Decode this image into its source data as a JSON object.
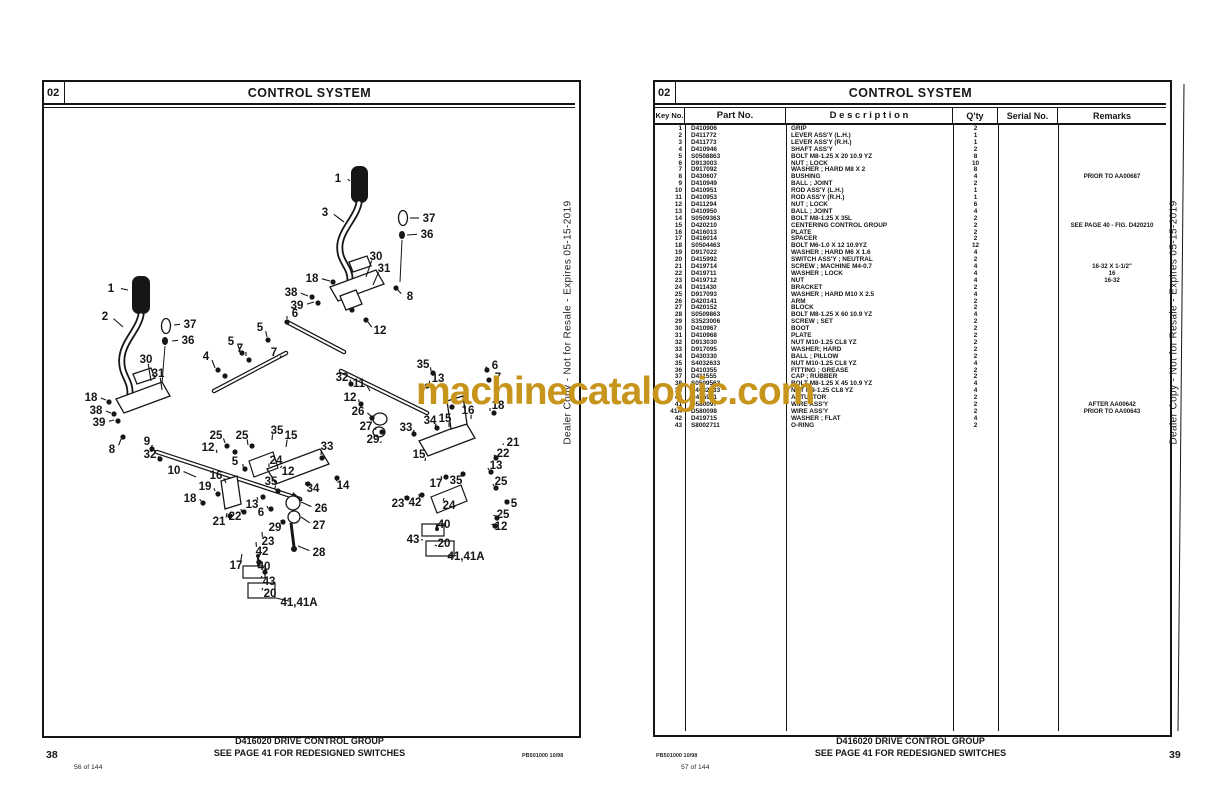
{
  "left_page": {
    "section_no": "02",
    "title": "CONTROL SYSTEM",
    "footer_title1": "D416020 DRIVE CONTROL GROUP",
    "footer_title2": "SEE PAGE 41 FOR REDESIGNED SWITCHES",
    "page_no": "38",
    "sheet_no": "56 of 144",
    "doc_code": "PB501000  10/98",
    "side_text": "Dealer Copy - Not for Resale - Expires 05-15-2019"
  },
  "right_page": {
    "section_no": "02",
    "title": "CONTROL SYSTEM",
    "footer_title1": "D416020 DRIVE CONTROL GROUP",
    "footer_title2": "SEE PAGE 41 FOR REDESIGNED SWITCHES",
    "page_no": "39",
    "sheet_no": "57 of 144",
    "doc_code": "PB501000  10/98",
    "side_text": "Dealer Copy - Not for Resale - Expires 05-15-2019",
    "table": {
      "headers": [
        "Key No.",
        "Part No.",
        "D e s c r i p t i o n",
        "Q'ty",
        "Serial No.",
        "Remarks"
      ],
      "rows": [
        [
          "1",
          "D410906",
          "GRIP",
          "2",
          "",
          ""
        ],
        [
          "2",
          "D411772",
          "LEVER ASS'Y (L.H.)",
          "1",
          "",
          ""
        ],
        [
          "3",
          "D411773",
          "LEVER ASS'Y (R.H.)",
          "1",
          "",
          ""
        ],
        [
          "4",
          "D410946",
          "SHAFT ASS'Y",
          "2",
          "",
          ""
        ],
        [
          "5",
          "S0508863",
          "BOLT M8-1.25 X 20 10.9 YZ",
          "8",
          "",
          ""
        ],
        [
          "6",
          "D913003",
          "NUT ; LOCK",
          "10",
          "",
          ""
        ],
        [
          "7",
          "D917092",
          "WASHER ; HARD M8 X 2",
          "8",
          "",
          ""
        ],
        [
          "8",
          "D430607",
          "BUSHING",
          "4",
          "",
          "PRIOR TO AA00687"
        ],
        [
          "9",
          "D410949",
          "BALL ; JOINT",
          "2",
          "",
          ""
        ],
        [
          "10",
          "D410951",
          "ROD ASS'Y (L.H.)",
          "1",
          "",
          ""
        ],
        [
          "11",
          "D410953",
          "ROD ASS'Y (R.H.)",
          "1",
          "",
          ""
        ],
        [
          "12",
          "D411294",
          "NUT ; LOCK",
          "6",
          "",
          ""
        ],
        [
          "13",
          "D410950",
          "BALL ; JOINT",
          "4",
          "",
          ""
        ],
        [
          "14",
          "S0509363",
          "BOLT M8-1.25 X 35L",
          "2",
          "",
          ""
        ],
        [
          "15",
          "D420210",
          "CENTERING CONTROL GROUP",
          "2",
          "",
          "SEE PAGE 40 - FIG. D420210"
        ],
        [
          "16",
          "D416013",
          "PLATE",
          "2",
          "",
          ""
        ],
        [
          "17",
          "D416014",
          "SPACER",
          "2",
          "",
          ""
        ],
        [
          "18",
          "S0504463",
          "BOLT M6-1.0 X 12 10.9YZ",
          "12",
          "",
          ""
        ],
        [
          "19",
          "D917022",
          "WASHER ; HARD M6 X 1.6",
          "4",
          "",
          ""
        ],
        [
          "20",
          "D415992",
          "SWITCH ASS'Y ; NEUTRAL",
          "2",
          "",
          ""
        ],
        [
          "21",
          "D419714",
          "SCREW ; MACHINE M4-0.7",
          "4",
          "",
          "16-32 X 1-1/2\""
        ],
        [
          "22",
          "D419711",
          "WASHER ; LOCK",
          "4",
          "",
          "16"
        ],
        [
          "23",
          "D419712",
          "NUT",
          "4",
          "",
          "16-32"
        ],
        [
          "24",
          "D411430",
          "BRACKET",
          "2",
          "",
          ""
        ],
        [
          "25",
          "D917093",
          "WASHER ; HARD M10 X 2.5",
          "4",
          "",
          ""
        ],
        [
          "26",
          "D420141",
          "ARM",
          "2",
          "",
          ""
        ],
        [
          "27",
          "D420152",
          "BLOCK",
          "2",
          "",
          ""
        ],
        [
          "28",
          "S0509863",
          "BOLT M8-1.25 X 60 10.9 YZ",
          "4",
          "",
          ""
        ],
        [
          "29",
          "S3523006",
          "SCREW ; SET",
          "2",
          "",
          ""
        ],
        [
          "30",
          "D410967",
          "BOOT",
          "2",
          "",
          ""
        ],
        [
          "31",
          "D410968",
          "PLATE",
          "2",
          "",
          ""
        ],
        [
          "32",
          "D913030",
          "NUT M10-1.25 CL8 YZ",
          "2",
          "",
          ""
        ],
        [
          "33",
          "D917095",
          "WASHER; HARD",
          "2",
          "",
          ""
        ],
        [
          "34",
          "D430330",
          "BALL ; PILLOW",
          "2",
          "",
          ""
        ],
        [
          "35",
          "S4032633",
          "NUT M10-1.25 CL8 YZ",
          "4",
          "",
          ""
        ],
        [
          "36",
          "D410355",
          "FITTING ; GREASE",
          "2",
          "",
          ""
        ],
        [
          "37",
          "D411555",
          "CAP ; RUBBER",
          "2",
          "",
          ""
        ],
        [
          "38",
          "S0509563",
          "BOLT M8-1.25 X 45 10.9 YZ",
          "4",
          "",
          ""
        ],
        [
          "39",
          "S4032533",
          "NUT M8-1.25 CL8 YZ",
          "4",
          "",
          ""
        ],
        [
          "40",
          "D415991",
          "ACTUATOR",
          "2",
          "",
          ""
        ],
        [
          "41",
          "D580097",
          "WIRE ASS'Y",
          "2",
          "",
          "AFTER AA00642"
        ],
        [
          "41A",
          "D580098",
          "WIRE ASS'Y",
          "2",
          "",
          "PRIOR TO AA00643"
        ],
        [
          "42",
          "D419715",
          "WASHER ; FLAT",
          "4",
          "",
          ""
        ],
        [
          "43",
          "S8002711",
          "O-RING",
          "2",
          "",
          ""
        ]
      ]
    }
  },
  "watermark": {
    "text": "machinecatalogic.com",
    "color": "#C8951C"
  },
  "diagram": {
    "figure": "D416020 DRIVE CONTROL GROUP exploded view",
    "callouts": [
      [
        "1",
        338,
        178,
        350,
        181
      ],
      [
        "3",
        325,
        212,
        344,
        222
      ],
      [
        "37",
        429,
        218,
        410,
        218
      ],
      [
        "36",
        427,
        234,
        407,
        235
      ],
      [
        "30",
        376,
        256,
        366,
        277
      ],
      [
        "31",
        384,
        268,
        373,
        285
      ],
      [
        "18",
        312,
        278,
        330,
        281
      ],
      [
        "38",
        291,
        292,
        308,
        296
      ],
      [
        "39",
        297,
        305,
        314,
        302
      ],
      [
        "8",
        410,
        296,
        397,
        289
      ],
      [
        "12",
        380,
        330,
        368,
        322
      ],
      [
        "1",
        111,
        288,
        128,
        290
      ],
      [
        "2",
        105,
        316,
        123,
        327
      ],
      [
        "37",
        190,
        324,
        174,
        325
      ],
      [
        "36",
        188,
        340,
        172,
        341
      ],
      [
        "30",
        146,
        359,
        151,
        381
      ],
      [
        "31",
        158,
        373,
        162,
        390
      ],
      [
        "18",
        91,
        397,
        106,
        400
      ],
      [
        "38",
        96,
        410,
        111,
        413
      ],
      [
        "39",
        99,
        422,
        114,
        420
      ],
      [
        "8",
        112,
        449,
        121,
        439
      ],
      [
        "9",
        147,
        441,
        151,
        447
      ],
      [
        "32",
        150,
        454,
        158,
        458
      ],
      [
        "5",
        231,
        341,
        240,
        351
      ],
      [
        "7",
        240,
        348,
        246,
        356
      ],
      [
        "4",
        206,
        356,
        215,
        368
      ],
      [
        "5",
        260,
        327,
        267,
        337
      ],
      [
        "7",
        274,
        352,
        280,
        358
      ],
      [
        "6",
        295,
        313,
        287,
        319
      ],
      [
        "10",
        174,
        470,
        196,
        477
      ],
      [
        "25",
        216,
        435,
        225,
        443
      ],
      [
        "12",
        208,
        447,
        217,
        453
      ],
      [
        "5",
        235,
        461,
        243,
        467
      ],
      [
        "25",
        242,
        435,
        248,
        445
      ],
      [
        "24",
        276,
        460,
        269,
        467
      ],
      [
        "35",
        277,
        430,
        272,
        440
      ],
      [
        "15",
        291,
        435,
        286,
        447
      ],
      [
        "33",
        327,
        446,
        321,
        455
      ],
      [
        "14",
        343,
        485,
        337,
        478
      ],
      [
        "12",
        288,
        471,
        282,
        466
      ],
      [
        "34",
        313,
        488,
        306,
        482
      ],
      [
        "26",
        321,
        508,
        301,
        502
      ],
      [
        "16",
        216,
        475,
        226,
        483
      ],
      [
        "19",
        205,
        486,
        215,
        491
      ],
      [
        "18",
        190,
        498,
        201,
        501
      ],
      [
        "21",
        219,
        521,
        227,
        513
      ],
      [
        "22",
        235,
        516,
        241,
        509
      ],
      [
        "13",
        252,
        504,
        257,
        497
      ],
      [
        "6",
        261,
        512,
        267,
        506
      ],
      [
        "35",
        271,
        481,
        275,
        489
      ],
      [
        "27",
        319,
        525,
        301,
        517
      ],
      [
        "29",
        275,
        527,
        281,
        520
      ],
      [
        "23",
        268,
        541,
        262,
        532
      ],
      [
        "42",
        262,
        551,
        256,
        542
      ],
      [
        "17",
        236,
        565,
        242,
        554
      ],
      [
        "28",
        319,
        552,
        298,
        546
      ],
      [
        "40",
        264,
        566,
        258,
        561
      ],
      [
        "43",
        269,
        581,
        262,
        576
      ],
      [
        "20",
        270,
        593,
        263,
        588
      ],
      [
        "41,41A",
        299,
        602,
        276,
        598
      ],
      [
        "32",
        342,
        377,
        350,
        382
      ],
      [
        "11",
        359,
        383,
        370,
        391
      ],
      [
        "35",
        423,
        364,
        431,
        371
      ],
      [
        "13",
        438,
        378,
        429,
        384
      ],
      [
        "12",
        350,
        397,
        359,
        402
      ],
      [
        "26",
        358,
        411,
        371,
        416
      ],
      [
        "27",
        366,
        426,
        376,
        430
      ],
      [
        "29",
        373,
        439,
        380,
        443
      ],
      [
        "33",
        406,
        427,
        413,
        432
      ],
      [
        "34",
        430,
        420,
        435,
        426
      ],
      [
        "15",
        445,
        418,
        449,
        427
      ],
      [
        "16",
        468,
        410,
        471,
        419
      ],
      [
        "18",
        498,
        405,
        490,
        411
      ],
      [
        "21",
        513,
        442,
        503,
        445
      ],
      [
        "22",
        503,
        453,
        496,
        456
      ],
      [
        "6",
        495,
        365,
        487,
        368
      ],
      [
        "7",
        498,
        377,
        489,
        379
      ],
      [
        "15",
        419,
        454,
        425,
        461
      ],
      [
        "35",
        456,
        480,
        461,
        474
      ],
      [
        "13",
        496,
        465,
        489,
        470
      ],
      [
        "17",
        436,
        483,
        441,
        476
      ],
      [
        "23",
        398,
        503,
        405,
        496
      ],
      [
        "42",
        415,
        502,
        419,
        494
      ],
      [
        "25",
        501,
        481,
        494,
        486
      ],
      [
        "24",
        449,
        505,
        444,
        498
      ],
      [
        "5",
        514,
        503,
        506,
        500
      ],
      [
        "25",
        503,
        514,
        496,
        516
      ],
      [
        "12",
        501,
        526,
        494,
        524
      ],
      [
        "40",
        444,
        524,
        438,
        528
      ],
      [
        "43",
        413,
        539,
        421,
        540
      ],
      [
        "20",
        444,
        543,
        437,
        546
      ],
      [
        "41,41A",
        466,
        556,
        448,
        555
      ]
    ]
  }
}
